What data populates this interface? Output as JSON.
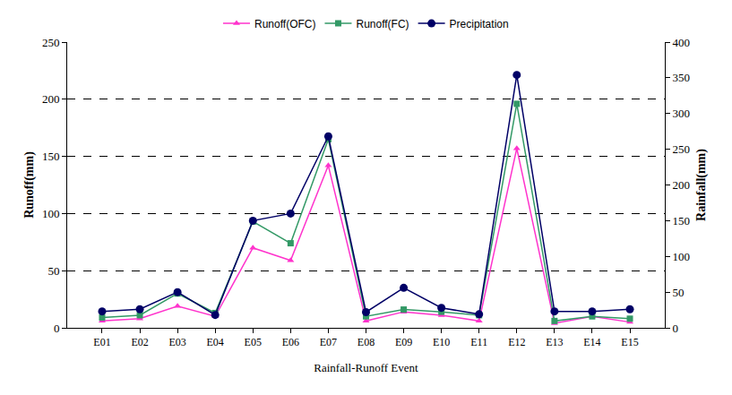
{
  "chart_data": {
    "type": "line",
    "x_label": "Rainfall-Runoff Event",
    "y_label": "Runoff(mm)",
    "y2_label": "Rainfall(mm)",
    "categories": [
      "E01",
      "E02",
      "E03",
      "E04",
      "E05",
      "E06",
      "E07",
      "E08",
      "E09",
      "E10",
      "E11",
      "E12",
      "E13",
      "E14",
      "E15"
    ],
    "series": [
      {
        "name": "Runoff(OFC)",
        "color": "#ff33cc",
        "marker": "triangle-up",
        "axis": "y",
        "values": [
          6,
          8,
          19,
          10,
          70,
          59,
          142,
          6,
          14,
          11,
          6,
          157,
          4,
          10,
          5
        ]
      },
      {
        "name": "Runoff(FC)",
        "color": "#339966",
        "marker": "square",
        "axis": "y",
        "values": [
          9,
          11,
          30,
          13,
          93,
          74,
          165,
          10,
          16,
          14,
          11,
          196,
          6,
          10,
          8
        ]
      },
      {
        "name": "Precipitation",
        "color": "#000066",
        "marker": "circle",
        "axis": "y2",
        "values": [
          23,
          26,
          50,
          18,
          150,
          160,
          268,
          22,
          56,
          28,
          19,
          354,
          23,
          23,
          26
        ]
      }
    ],
    "ylim": [
      0,
      250
    ],
    "yticks": [
      0,
      50,
      100,
      150,
      200,
      250
    ],
    "y2lim": [
      0,
      400
    ],
    "y2ticks": [
      0,
      50,
      100,
      150,
      200,
      250,
      300,
      350,
      400
    ],
    "grid": true,
    "legend": "top"
  }
}
